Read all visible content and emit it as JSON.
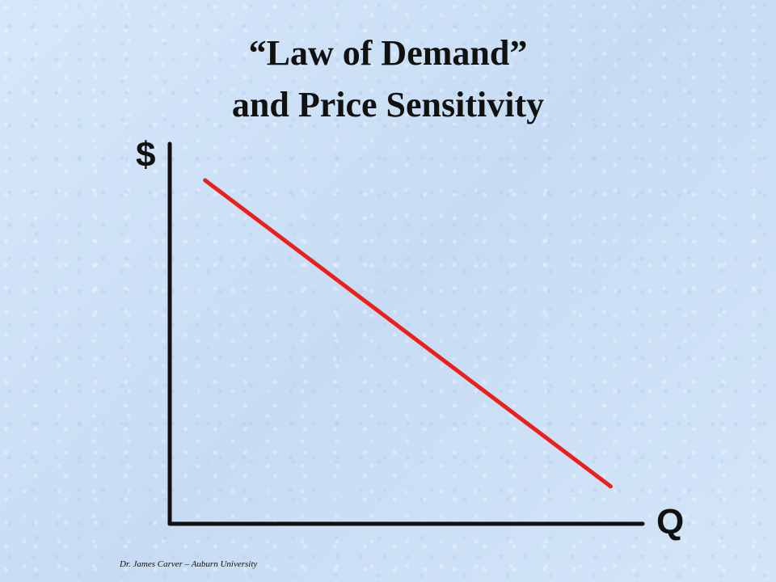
{
  "slide": {
    "title_line_1": "“Law of Demand”",
    "title_line_2": "and Price Sensitivity",
    "footer_credit": "Dr. James Carver – Auburn University"
  },
  "chart_data": {
    "type": "line",
    "ylabel": "$",
    "xlabel": "Q",
    "series": [
      {
        "x": [
          0.08,
          1.0
        ],
        "y": [
          0.92,
          0.1
        ],
        "color": "#e8201e"
      }
    ],
    "xlim": [
      0,
      1.15
    ],
    "ylim": [
      0,
      1
    ],
    "grid": false,
    "axis_color": "#111111"
  }
}
